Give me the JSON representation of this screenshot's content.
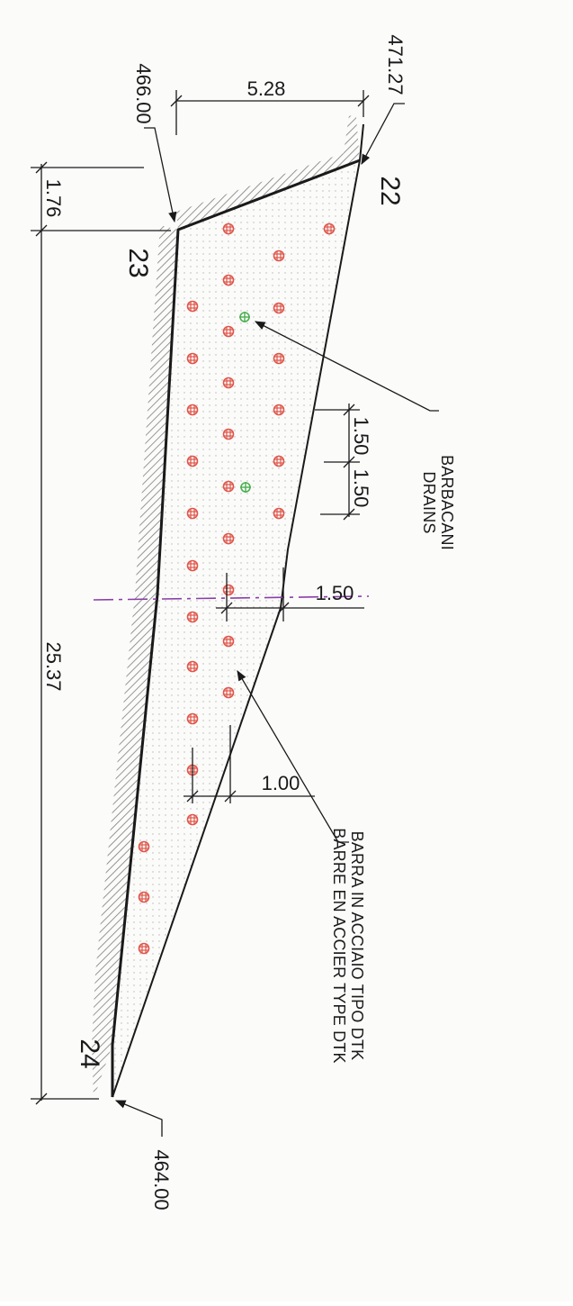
{
  "elevations": {
    "top_right": "471.27",
    "top_left": "466.00",
    "bottom": "464.00"
  },
  "dimensions": {
    "width_top": "5.28",
    "height_small": "1.76",
    "height_total": "25.37",
    "spacing_a": "1.50",
    "spacing_b": "1.50",
    "spacing_c": "1.50",
    "spacing_d": "1.00"
  },
  "points": {
    "p22": "22",
    "p23": "23",
    "p24": "24"
  },
  "labels": {
    "drains_it": "BARBACANI",
    "drains_fr": "DRAINS",
    "bar_it": "BARRA IN ACCIAIO TIPO DTK",
    "bar_fr": "BARRE EN ACCIER TYPE DTK"
  },
  "colors": {
    "line": "#1a1a1a",
    "hatch": "#8a8a8a",
    "bar_marker": "#e0564a",
    "drain_marker": "#4caf50",
    "axis_line": "#8a3fa8",
    "fill_dots": "#b5b5b5"
  }
}
